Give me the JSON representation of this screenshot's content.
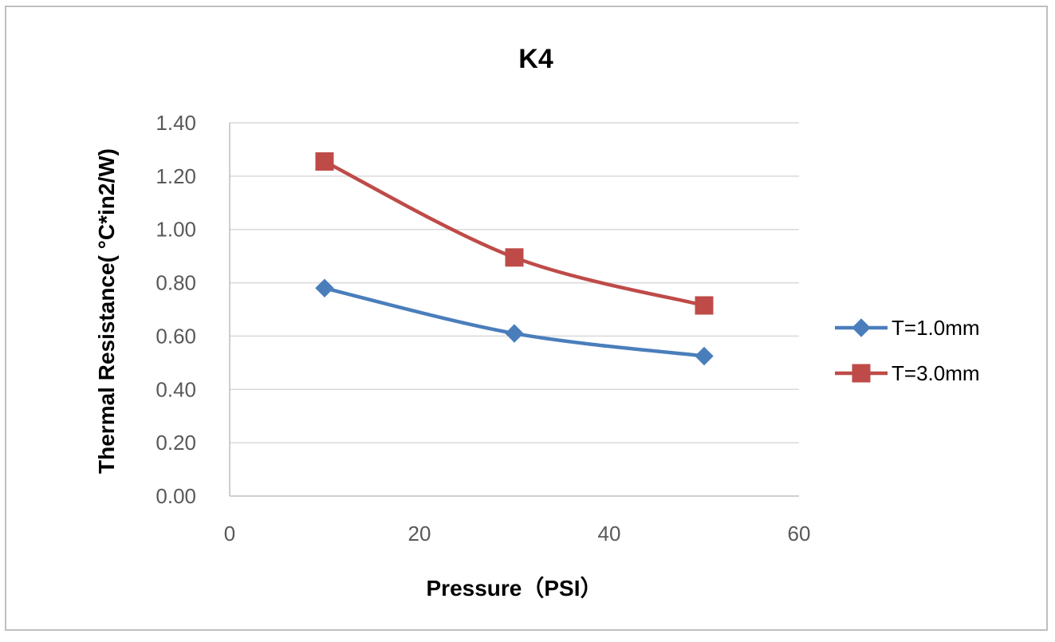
{
  "chart_data": {
    "type": "line",
    "title": "K4",
    "xlabel": "Pressure（PSI）",
    "ylabel": "Thermal Resistance( °C*in2/W)",
    "xlim": [
      0,
      60
    ],
    "ylim": [
      0,
      1.4
    ],
    "x_ticks": [
      "0",
      "20",
      "40",
      "60"
    ],
    "y_ticks": [
      "0.00",
      "0.20",
      "0.40",
      "0.60",
      "0.80",
      "1.00",
      "1.20",
      "1.40"
    ],
    "grid": true,
    "legend_position": "right",
    "series": [
      {
        "name": "T=1.0mm",
        "color": "#4a7ebb",
        "marker": "diamond",
        "x": [
          10,
          30,
          50
        ],
        "values": [
          0.78,
          0.61,
          0.525
        ]
      },
      {
        "name": "T=3.0mm",
        "color": "#be4b48",
        "marker": "square",
        "x": [
          10,
          30,
          50
        ],
        "values": [
          1.255,
          0.895,
          0.715
        ]
      }
    ]
  }
}
